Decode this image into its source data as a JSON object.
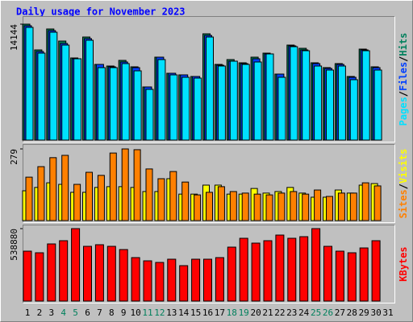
{
  "chart_data": [
    {
      "type": "bar",
      "title": "Daily usage for November 2023",
      "ylim": [
        0,
        14144
      ],
      "yticks": [
        14144
      ],
      "legend_separator": "/",
      "series": [
        {
          "name": "Hits",
          "color": "#00805c",
          "values": [
            14144,
            11001,
            13555,
            12081,
            10019,
            12573,
            9233,
            9036,
            9724,
            8938,
            6483,
            10117,
            8152,
            7956,
            7760,
            12965,
            9233,
            9822,
            9429,
            10117,
            10608,
            8054,
            11590,
            11197,
            9429,
            8840,
            9331,
            7760,
            11099,
            8938,
            null
          ]
        },
        {
          "name": "Files",
          "color": "#0040ff",
          "values": [
            13947,
            10804,
            13358,
            11786,
            9920,
            12376,
            9233,
            8938,
            9527,
            8840,
            6483,
            10117,
            8152,
            7956,
            7760,
            12769,
            9134,
            9626,
            9331,
            9920,
            10510,
            8054,
            11492,
            11001,
            9331,
            8742,
            9233,
            7661,
            11001,
            8840,
            null
          ]
        },
        {
          "name": "Pages",
          "color": "#00e0ff",
          "values": [
            13751,
            10608,
            13161,
            11590,
            9920,
            12179,
            8840,
            8840,
            9331,
            8447,
            6188,
            9822,
            7956,
            7661,
            7563,
            12572,
            9036,
            9626,
            9233,
            9527,
            10510,
            7661,
            11394,
            10902,
            9036,
            8545,
            9036,
            7367,
            10902,
            8545,
            null
          ]
        }
      ]
    },
    {
      "type": "bar",
      "ylim": [
        0,
        279
      ],
      "yticks": [
        279
      ],
      "legend_separator": "/",
      "series": [
        {
          "name": "Visits",
          "color": "#ffff00",
          "values": [
            116,
            129,
            147,
            141,
            110,
            110,
            129,
            132,
            132,
            129,
            113,
            113,
            163,
            103,
            103,
            138,
            138,
            103,
            103,
            125,
            107,
            113,
            129,
            107,
            91,
            91,
            119,
            107,
            138,
            144,
            null
          ]
        },
        {
          "name": "Sites",
          "color": "#ff8000",
          "values": [
            169,
            210,
            245,
            254,
            141,
            188,
            176,
            263,
            279,
            276,
            201,
            163,
            191,
            150,
            100,
            110,
            132,
            113,
            107,
            103,
            100,
            107,
            113,
            103,
            119,
            94,
            107,
            107,
            147,
            135,
            null
          ]
        }
      ]
    },
    {
      "type": "bar",
      "ylim": [
        0,
        538880
      ],
      "yticks": [
        538880
      ],
      "categories": [
        "1",
        "2",
        "3",
        "4",
        "5",
        "6",
        "7",
        "8",
        "9",
        "10",
        "11",
        "12",
        "13",
        "14",
        "15",
        "16",
        "17",
        "18",
        "19",
        "20",
        "21",
        "22",
        "23",
        "24",
        "25",
        "26",
        "27",
        "28",
        "29",
        "30",
        "31"
      ],
      "category_colors": [
        "#000000",
        "#000000",
        "#000000",
        "#00805c",
        "#00805c",
        "#000000",
        "#000000",
        "#000000",
        "#000000",
        "#000000",
        "#00805c",
        "#00805c",
        "#000000",
        "#000000",
        "#000000",
        "#000000",
        "#000000",
        "#00805c",
        "#00805c",
        "#000000",
        "#000000",
        "#000000",
        "#000000",
        "#000000",
        "#00805c",
        "#00805c",
        "#000000",
        "#000000",
        "#000000",
        "#000000",
        "#000000"
      ],
      "series": [
        {
          "name": "KBytes",
          "color": "#ff0000",
          "values": [
            371231,
            359256,
            425120,
            449070,
            538880,
            407157,
            419132,
            407157,
            383206,
            323330,
            299380,
            287405,
            311355,
            263454,
            311355,
            311355,
            323330,
            401169,
            467033,
            431107,
            449070,
            490983,
            467033,
            479008,
            538880,
            407157,
            371231,
            359256,
            395182,
            449070,
            null
          ]
        }
      ]
    }
  ]
}
